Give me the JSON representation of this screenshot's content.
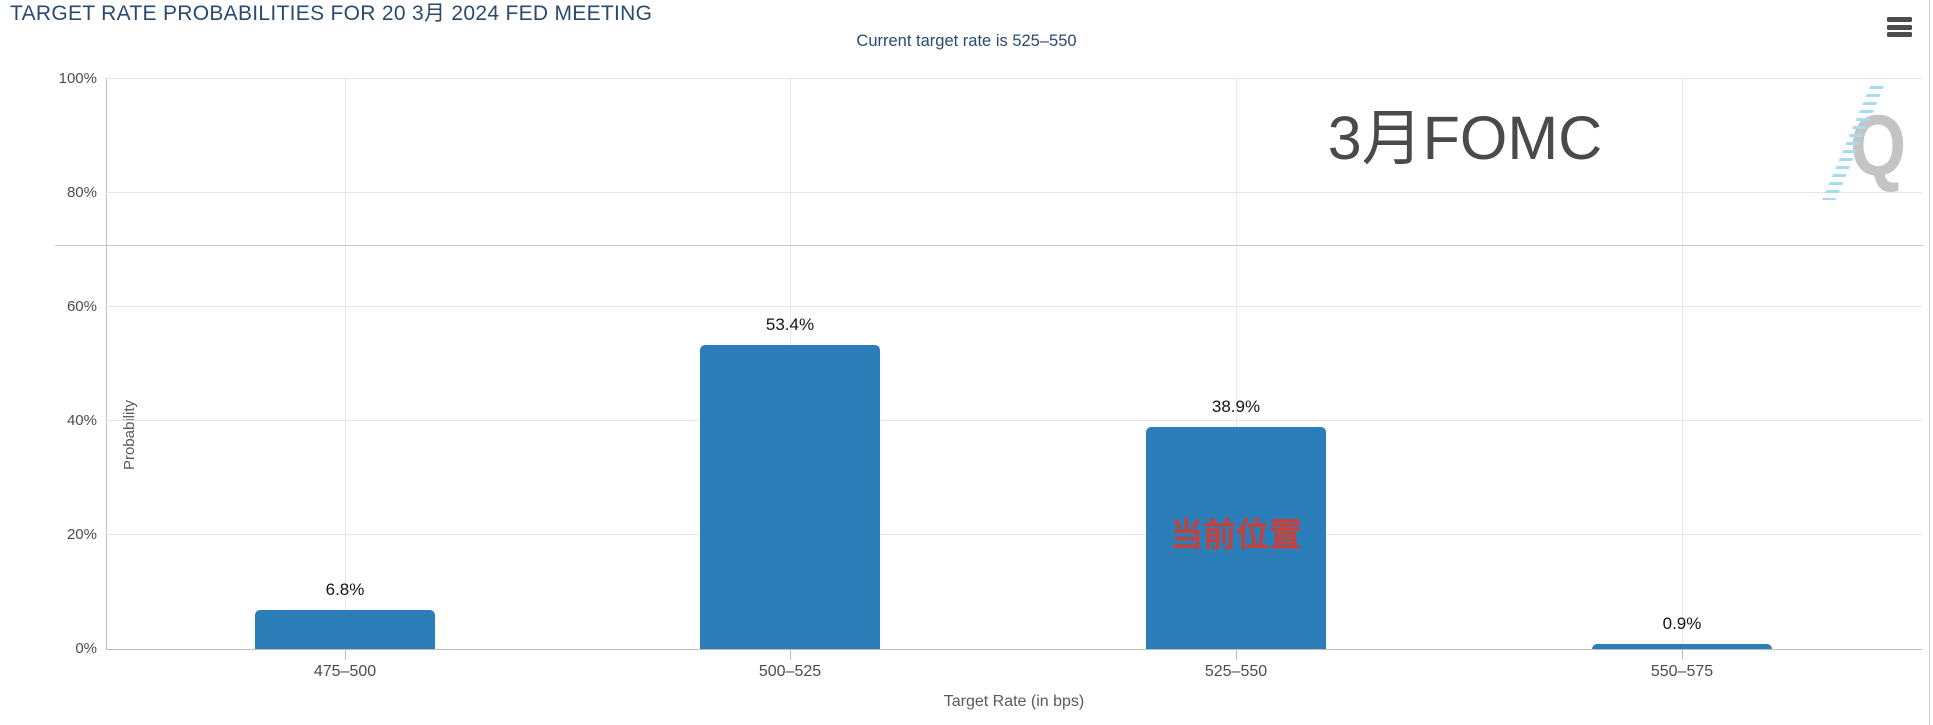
{
  "chart_data": {
    "type": "bar",
    "title": "TARGET RATE PROBABILITIES FOR 20 3月 2024 FED MEETING",
    "subtitle": "Current target rate is 525–550",
    "categories": [
      "475–500",
      "500–525",
      "525–550",
      "550–575"
    ],
    "values": [
      6.8,
      53.4,
      38.9,
      0.9
    ],
    "value_labels": [
      "6.8%",
      "53.4%",
      "38.9%",
      "0.9%"
    ],
    "xlabel": "Target Rate (in bps)",
    "ylabel": "Probability",
    "ylim": [
      0,
      100
    ],
    "yticks": [
      0,
      20,
      40,
      60,
      80,
      100
    ],
    "ytick_labels": [
      "0%",
      "20%",
      "40%",
      "60%",
      "80%",
      "100%"
    ],
    "bar_color": "#2b7eb8",
    "grid": true,
    "legend": "none"
  },
  "annotations": {
    "fomc_label": "3月FOMC",
    "current_position_label": "当前位置",
    "current_position_color": "#c94039",
    "watermark_letter": "Q"
  },
  "colors": {
    "title_navy": "#2a4a70",
    "accent_blue": "#2b7eb8",
    "annotation_red": "#c94039",
    "gridline": "#e6e6e6"
  }
}
